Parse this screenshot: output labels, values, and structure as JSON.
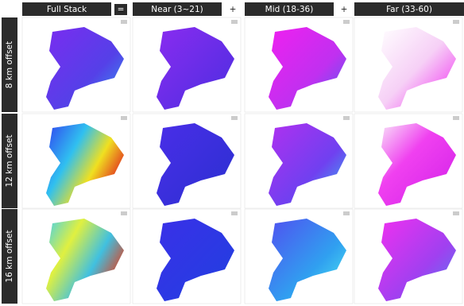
{
  "header": {
    "columns": [
      "Full Stack",
      "Near (3~21)",
      "Mid (18-36)",
      "Far (33-60)"
    ],
    "operators": [
      "=",
      "+",
      "+"
    ]
  },
  "rows": [
    "8 km offset",
    "12 km offset",
    "16 km offset"
  ]
}
